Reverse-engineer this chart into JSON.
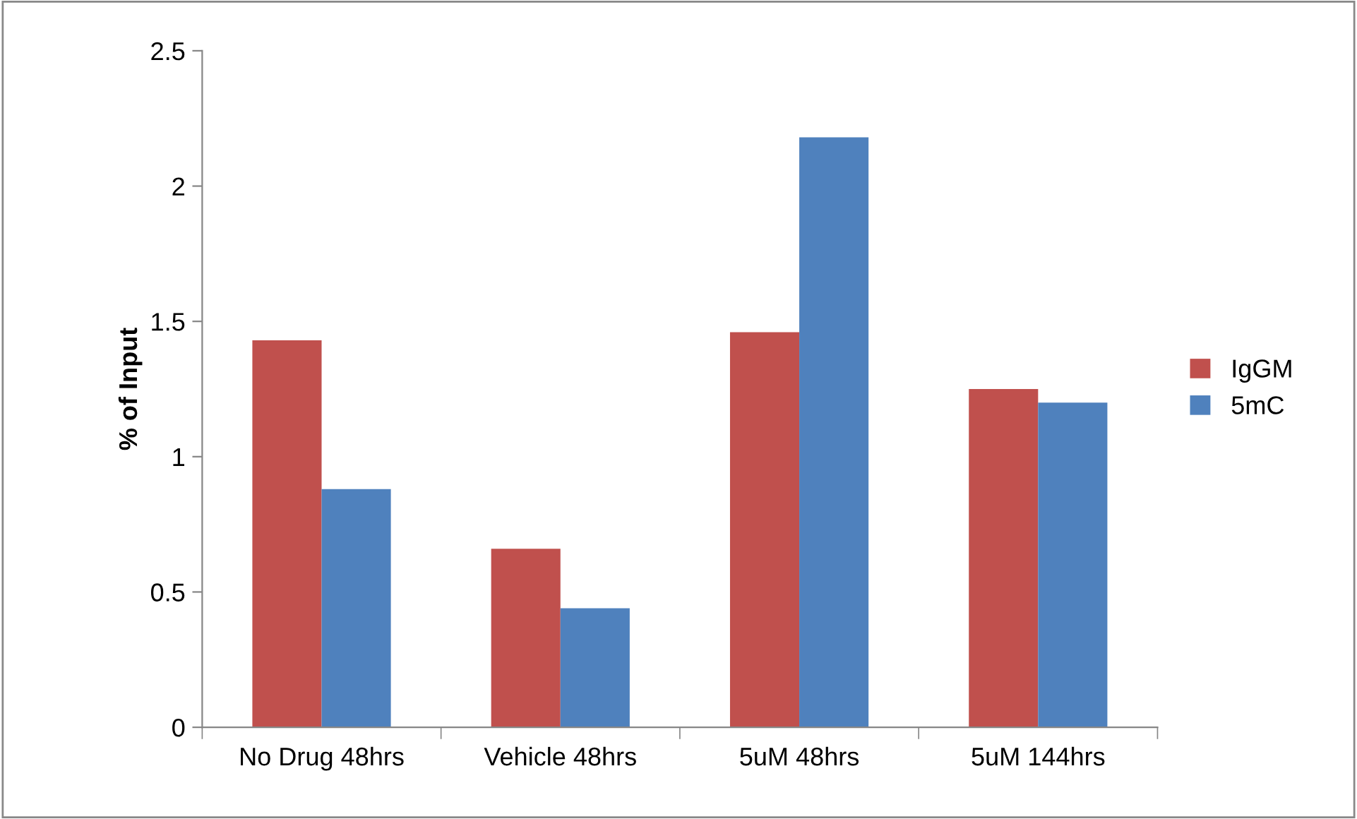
{
  "chart_data": {
    "type": "bar",
    "ylabel": "% of Input",
    "categories": [
      "No Drug 48hrs",
      "Vehicle 48hrs",
      "5uM 48hrs",
      "5uM 144hrs"
    ],
    "series": [
      {
        "name": "IgGM",
        "color": "#c0504d",
        "values": [
          1.43,
          0.66,
          1.46,
          1.25
        ]
      },
      {
        "name": "5mC",
        "color": "#4f81bd",
        "values": [
          0.88,
          0.44,
          2.18,
          1.2
        ]
      }
    ],
    "ylim": [
      0,
      2.5
    ],
    "yticks": [
      0,
      0.5,
      1,
      1.5,
      2,
      2.5
    ],
    "grid": false,
    "legend": "right"
  }
}
